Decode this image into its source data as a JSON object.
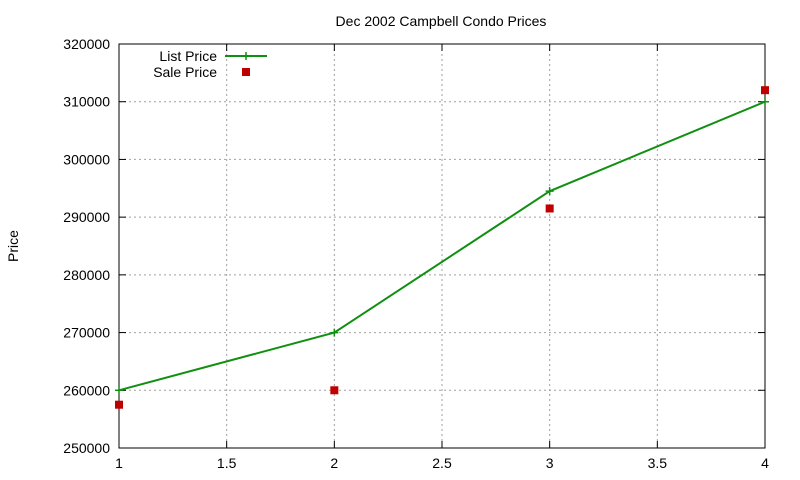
{
  "chart_data": {
    "type": "line",
    "title": "Dec 2002 Campbell Condo Prices",
    "xlabel": "",
    "ylabel": "Price",
    "xlim": [
      1,
      4
    ],
    "ylim": [
      250000,
      320000
    ],
    "xticks": [
      1,
      1.5,
      2,
      2.5,
      3,
      3.5,
      4
    ],
    "yticks": [
      250000,
      260000,
      270000,
      280000,
      290000,
      300000,
      310000,
      320000
    ],
    "grid": true,
    "legend_position": "top-left",
    "series": [
      {
        "name": "List Price",
        "style": "lines+points",
        "marker": "plus",
        "color": "#109010",
        "x": [
          1,
          2,
          3,
          4
        ],
        "y": [
          260000,
          270000,
          294500,
          310000
        ]
      },
      {
        "name": "Sale Price",
        "style": "points",
        "marker": "square",
        "color": "#c00000",
        "x": [
          1,
          2,
          3,
          4
        ],
        "y": [
          257500,
          260000,
          291500,
          312000
        ]
      }
    ]
  }
}
